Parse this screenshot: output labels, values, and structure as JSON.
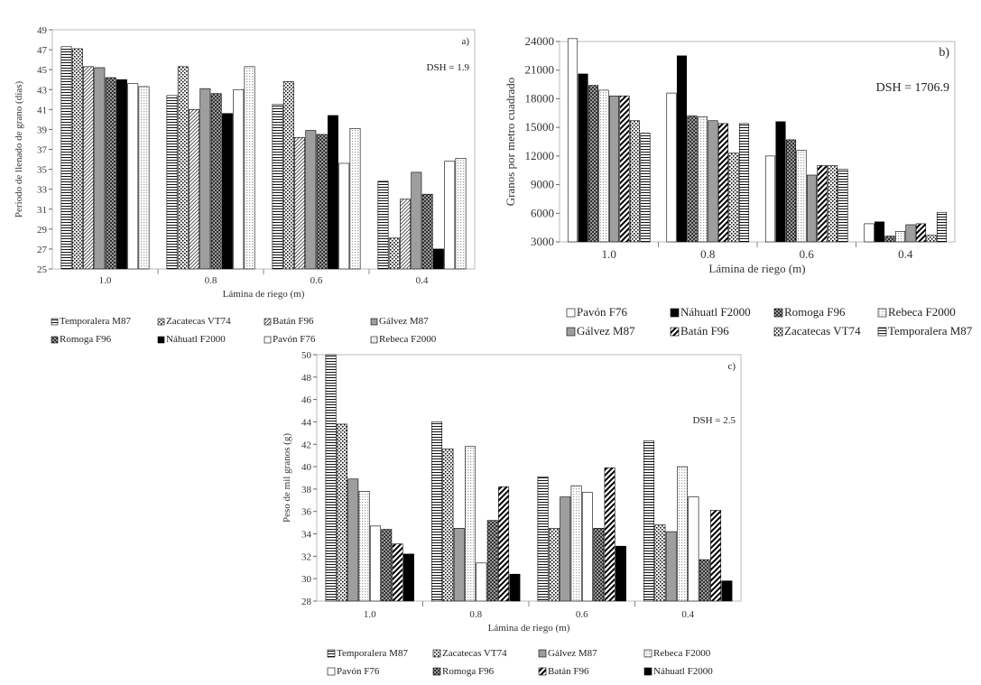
{
  "patterns": {
    "Temporalera M87": "hlines",
    "Zacatecas VT74": "dots",
    "Batán F96": "diag",
    "Gálvez M87": "gray",
    "Romoga F96": "grid",
    "Náhuatl F2000": "black",
    "Pavón F76": "white",
    "Rebeca F2000": "lightdots"
  },
  "chart_data": [
    {
      "type": "bar",
      "panel_label": "a)",
      "annotation": "DSH = 1.9",
      "xlabel": "Lámina de riego (m)",
      "ylabel": "Periodo de llenado de grano (días)",
      "ylim": [
        25,
        49
      ],
      "yticks": [
        "25",
        "27",
        "29",
        "31",
        "33",
        "35",
        "37",
        "39",
        "41",
        "43",
        "45",
        "47",
        "49"
      ],
      "categories": [
        "1.0",
        "0.8",
        "0.6",
        "0.4"
      ],
      "legend_position": "bottom",
      "legend_columns": 4,
      "series": [
        {
          "name": "Temporalera M87",
          "values": [
            47.3,
            42.4,
            41.5,
            33.8
          ]
        },
        {
          "name": "Zacatecas VT74",
          "values": [
            47.1,
            45.3,
            43.8,
            28.1
          ]
        },
        {
          "name": "Batán F96",
          "values": [
            45.3,
            41.0,
            38.2,
            32.0
          ]
        },
        {
          "name": "Gálvez M87",
          "values": [
            45.2,
            43.1,
            38.9,
            34.7
          ]
        },
        {
          "name": "Romoga F96",
          "values": [
            44.2,
            42.6,
            38.5,
            32.5
          ]
        },
        {
          "name": "Náhuatl F2000",
          "values": [
            44.0,
            40.6,
            40.4,
            27.0
          ]
        },
        {
          "name": "Pavón F76",
          "values": [
            43.6,
            43.0,
            35.6,
            35.8
          ]
        },
        {
          "name": "Rebeca F2000",
          "values": [
            43.3,
            45.3,
            39.1,
            36.1
          ]
        }
      ]
    },
    {
      "type": "bar",
      "panel_label": "b)",
      "annotation": "DSH = 1706.9",
      "xlabel": "Lámina de riego (m)",
      "ylabel": "Granos por metro cuadrado",
      "ylim": [
        3000,
        24000
      ],
      "yticks": [
        "3000",
        "6000",
        "9000",
        "12000",
        "15000",
        "18000",
        "21000",
        "24000"
      ],
      "categories": [
        "1.0",
        "0.8",
        "0.6",
        "0.4"
      ],
      "legend_position": "bottom",
      "legend_columns": 4,
      "series": [
        {
          "name": "Pavón F76",
          "values": [
            24300,
            18600,
            12000,
            4900
          ]
        },
        {
          "name": "Náhuatl F2000",
          "values": [
            20600,
            22500,
            15600,
            5100
          ]
        },
        {
          "name": "Romoga F96",
          "values": [
            19400,
            16200,
            13700,
            3600
          ]
        },
        {
          "name": "Rebeca F2000",
          "values": [
            18900,
            16100,
            12600,
            4100
          ]
        },
        {
          "name": "Gálvez M87",
          "values": [
            18300,
            15700,
            10000,
            4800
          ]
        },
        {
          "name": "Batán F96",
          "values": [
            18300,
            15400,
            11000,
            4900
          ]
        },
        {
          "name": "Zacatecas VT74",
          "values": [
            15700,
            12300,
            11000,
            3700
          ]
        },
        {
          "name": "Temporalera M87",
          "values": [
            14400,
            15400,
            10600,
            6100
          ]
        }
      ]
    },
    {
      "type": "bar",
      "panel_label": "c)",
      "annotation": "DSH = 2.5",
      "xlabel": "Lámina de riego (m)",
      "ylabel": "Peso de mil granos (g)",
      "ylim": [
        28,
        50
      ],
      "yticks": [
        "28",
        "30",
        "32",
        "34",
        "36",
        "38",
        "40",
        "42",
        "44",
        "46",
        "48",
        "50"
      ],
      "categories": [
        "1.0",
        "0.8",
        "0.6",
        "0.4"
      ],
      "legend_position": "bottom",
      "legend_columns": 4,
      "series": [
        {
          "name": "Temporalera M87",
          "values": [
            50.0,
            44.0,
            39.1,
            42.3
          ]
        },
        {
          "name": "Zacatecas VT74",
          "values": [
            43.8,
            41.6,
            34.5,
            34.8
          ]
        },
        {
          "name": "Gálvez M87",
          "values": [
            38.9,
            34.5,
            37.3,
            34.2
          ]
        },
        {
          "name": "Rebeca F2000",
          "values": [
            37.8,
            41.8,
            38.3,
            40.0
          ]
        },
        {
          "name": "Pavón F76",
          "values": [
            34.7,
            31.4,
            37.7,
            37.3
          ]
        },
        {
          "name": "Romoga F96",
          "values": [
            34.4,
            35.2,
            34.5,
            31.7
          ]
        },
        {
          "name": "Batán F96",
          "values": [
            33.1,
            38.2,
            39.9,
            36.1
          ]
        },
        {
          "name": "Náhuatl F2000",
          "values": [
            32.2,
            30.4,
            32.9,
            29.8
          ]
        }
      ]
    }
  ]
}
